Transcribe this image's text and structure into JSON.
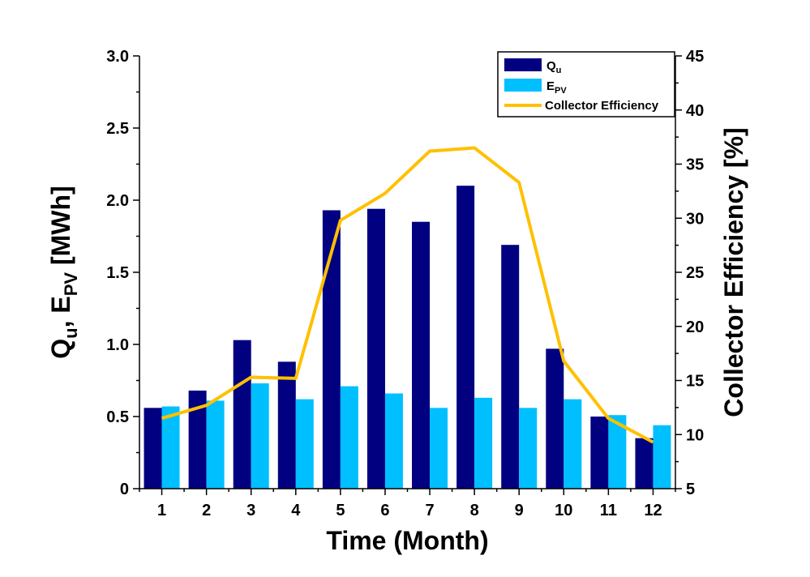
{
  "chart_data": {
    "type": "bar",
    "categories": [
      "1",
      "2",
      "3",
      "4",
      "5",
      "6",
      "7",
      "8",
      "9",
      "10",
      "11",
      "12"
    ],
    "series": [
      {
        "name": "Qu",
        "name_main": "Q",
        "name_sub": "u",
        "axis": "left",
        "type": "bar",
        "color": "#000080",
        "values": [
          0.56,
          0.68,
          1.03,
          0.88,
          1.93,
          1.94,
          1.85,
          2.1,
          1.69,
          0.97,
          0.5,
          0.35
        ]
      },
      {
        "name": "EPV",
        "name_main": "E",
        "name_sub": "PV",
        "axis": "left",
        "type": "bar",
        "color": "#00BFFF",
        "values": [
          0.57,
          0.61,
          0.73,
          0.62,
          0.71,
          0.66,
          0.56,
          0.63,
          0.56,
          0.62,
          0.51,
          0.44
        ]
      },
      {
        "name": "Collector Efficiency",
        "axis": "right",
        "type": "line",
        "color": "#FFC000",
        "values": [
          11.5,
          12.7,
          15.3,
          15.2,
          29.8,
          32.3,
          36.2,
          36.5,
          33.3,
          16.8,
          11.5,
          9.3
        ]
      }
    ],
    "xlabel": "Time (Month)",
    "ylabel": {
      "parts": [
        {
          "t": "Q",
          "sub": false
        },
        {
          "t": "u",
          "sub": true
        },
        {
          "t": ", E",
          "sub": false
        },
        {
          "t": "PV",
          "sub": true
        },
        {
          "t": " [MWh]",
          "sub": false
        }
      ]
    },
    "y2label": "Collector Efficiency [%]",
    "ylim": [
      0,
      3.0
    ],
    "y2lim": [
      5,
      45
    ],
    "yticks": [
      "0",
      "0.5",
      "1.0",
      "1.5",
      "2.0",
      "2.5",
      "3.0"
    ],
    "y2ticks": [
      "5",
      "10",
      "15",
      "20",
      "25",
      "30",
      "35",
      "40",
      "45"
    ],
    "legend_position": "top-right",
    "grid": false
  }
}
